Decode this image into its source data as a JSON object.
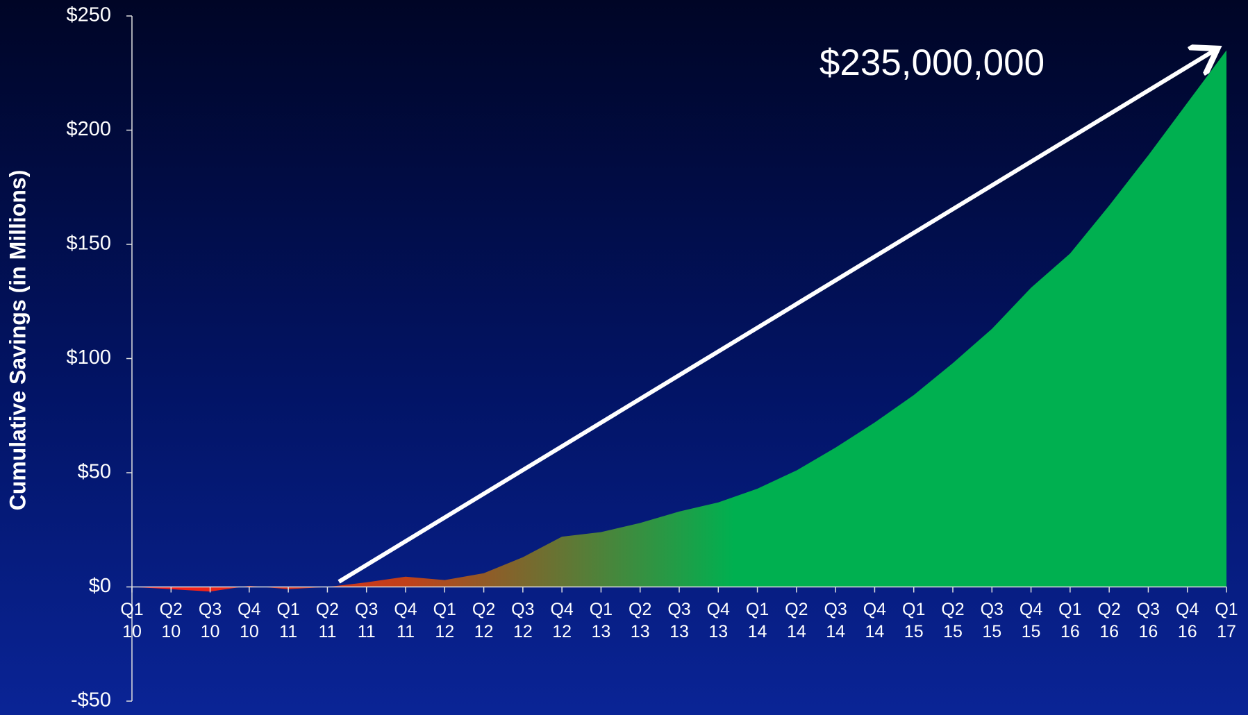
{
  "chart_data": {
    "type": "area",
    "y_label": "Cumulative Savings (in Millions)",
    "annotation": "$235,000,000",
    "categories": [
      "Q1 10",
      "Q2 10",
      "Q3 10",
      "Q4 10",
      "Q1 11",
      "Q2 11",
      "Q3 11",
      "Q4 11",
      "Q1 12",
      "Q2 12",
      "Q3 12",
      "Q4 12",
      "Q1 13",
      "Q2 13",
      "Q3 13",
      "Q4 13",
      "Q1 14",
      "Q2 14",
      "Q3 14",
      "Q4 14",
      "Q1 15",
      "Q2 15",
      "Q3 15",
      "Q4 15",
      "Q1 16",
      "Q2 16",
      "Q3 16",
      "Q4 16",
      "Q1 17"
    ],
    "series": [
      {
        "color": "#00b050",
        "values": [
          0,
          -1,
          -2,
          0.5,
          -1,
          0,
          2,
          4.5,
          3,
          6,
          13,
          22,
          24,
          28,
          33,
          37,
          43,
          51,
          61,
          72,
          84,
          98,
          113,
          131,
          146,
          167,
          189,
          212,
          235
        ]
      }
    ],
    "ylim": [
      -50,
      250
    ],
    "yticks": [
      {
        "value": -50,
        "label": "-$50"
      },
      {
        "value": 0,
        "label": "$0"
      },
      {
        "value": 50,
        "label": "$50"
      },
      {
        "value": 100,
        "label": "$100"
      },
      {
        "value": 150,
        "label": "$150"
      },
      {
        "value": 200,
        "label": "$200"
      },
      {
        "value": 250,
        "label": "$250"
      }
    ]
  }
}
